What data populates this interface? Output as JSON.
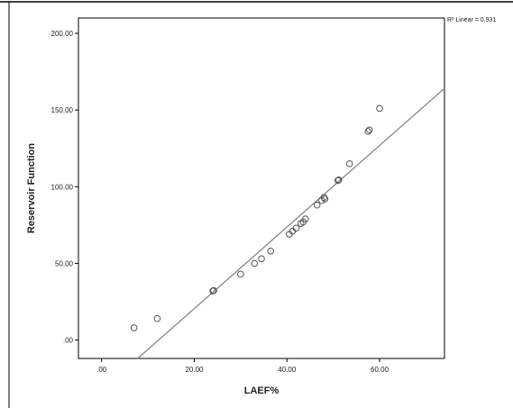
{
  "chart_data": {
    "type": "scatter",
    "title": "",
    "xlabel": "LAEF%",
    "ylabel": "Reservoir Function",
    "xlim": [
      -5,
      74
    ],
    "ylim": [
      -12,
      210
    ],
    "x_ticks": [
      0,
      20,
      40,
      60
    ],
    "x_tick_labels": [
      ".00",
      "20.00",
      "40.00",
      "60.00"
    ],
    "y_ticks": [
      0,
      50,
      100,
      150,
      200
    ],
    "y_tick_labels": [
      ".00",
      "50.00",
      "100.00",
      "150.00",
      "200.00"
    ],
    "grid": false,
    "points": [
      {
        "x": 7,
        "y": 8
      },
      {
        "x": 12,
        "y": 14
      },
      {
        "x": 24,
        "y": 32
      },
      {
        "x": 24.2,
        "y": 32.3
      },
      {
        "x": 30,
        "y": 43
      },
      {
        "x": 33,
        "y": 50
      },
      {
        "x": 34.5,
        "y": 53
      },
      {
        "x": 36.5,
        "y": 58
      },
      {
        "x": 40.5,
        "y": 69
      },
      {
        "x": 41.2,
        "y": 71
      },
      {
        "x": 42,
        "y": 73
      },
      {
        "x": 43,
        "y": 76
      },
      {
        "x": 43.5,
        "y": 77
      },
      {
        "x": 44,
        "y": 79
      },
      {
        "x": 46.5,
        "y": 88
      },
      {
        "x": 47.5,
        "y": 91
      },
      {
        "x": 48,
        "y": 93
      },
      {
        "x": 48.2,
        "y": 92
      },
      {
        "x": 51,
        "y": 104
      },
      {
        "x": 51.2,
        "y": 104.5
      },
      {
        "x": 53.5,
        "y": 115
      },
      {
        "x": 57.5,
        "y": 136
      },
      {
        "x": 57.8,
        "y": 137
      },
      {
        "x": 60,
        "y": 151
      }
    ],
    "fit_line": {
      "label": "R² Linear = 0.931",
      "slope": 2.66,
      "intercept": -32.7
    }
  }
}
